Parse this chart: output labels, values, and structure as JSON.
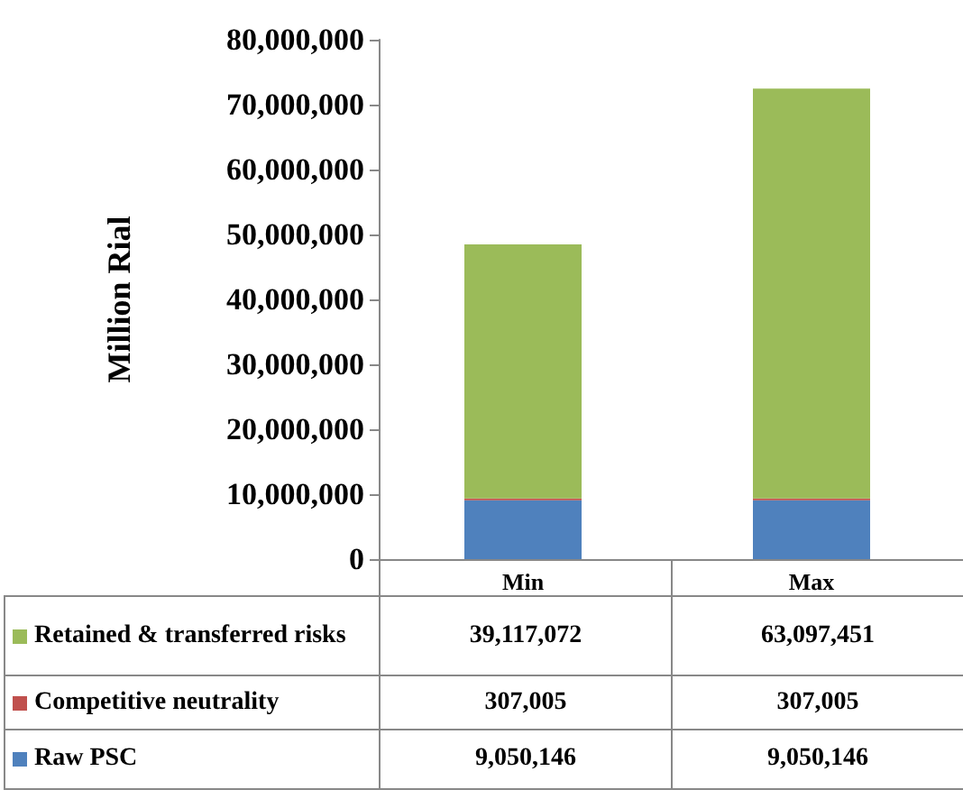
{
  "chart_data": {
    "type": "bar",
    "stacked": true,
    "ylabel": "Million Rial",
    "categories": [
      "Min",
      "Max"
    ],
    "series": [
      {
        "name": "Raw PSC",
        "color": "#4f81bd",
        "values": [
          9050146,
          9050146
        ],
        "value_labels": [
          "9,050,146",
          "9,050,146"
        ]
      },
      {
        "name": "Competitive neutrality",
        "color": "#c0504d",
        "values": [
          307005,
          307005
        ],
        "value_labels": [
          "307,005",
          "307,005"
        ]
      },
      {
        "name": "Retained & transferred risks",
        "color": "#9bbb59",
        "values": [
          39117072,
          63097451
        ],
        "value_labels": [
          "39,117,072",
          "63,097,451"
        ]
      }
    ],
    "ylim": [
      0,
      80000000
    ],
    "yticks": [
      {
        "value": 0,
        "label": "0"
      },
      {
        "value": 10000000,
        "label": "10,000,000"
      },
      {
        "value": 20000000,
        "label": "20,000,000"
      },
      {
        "value": 30000000,
        "label": "30,000,000"
      },
      {
        "value": 40000000,
        "label": "40,000,000"
      },
      {
        "value": 50000000,
        "label": "50,000,000"
      },
      {
        "value": 60000000,
        "label": "60,000,000"
      },
      {
        "value": 70000000,
        "label": "70,000,000"
      },
      {
        "value": 80000000,
        "label": "80,000,000"
      }
    ],
    "grid": false,
    "legend": "bottom"
  }
}
